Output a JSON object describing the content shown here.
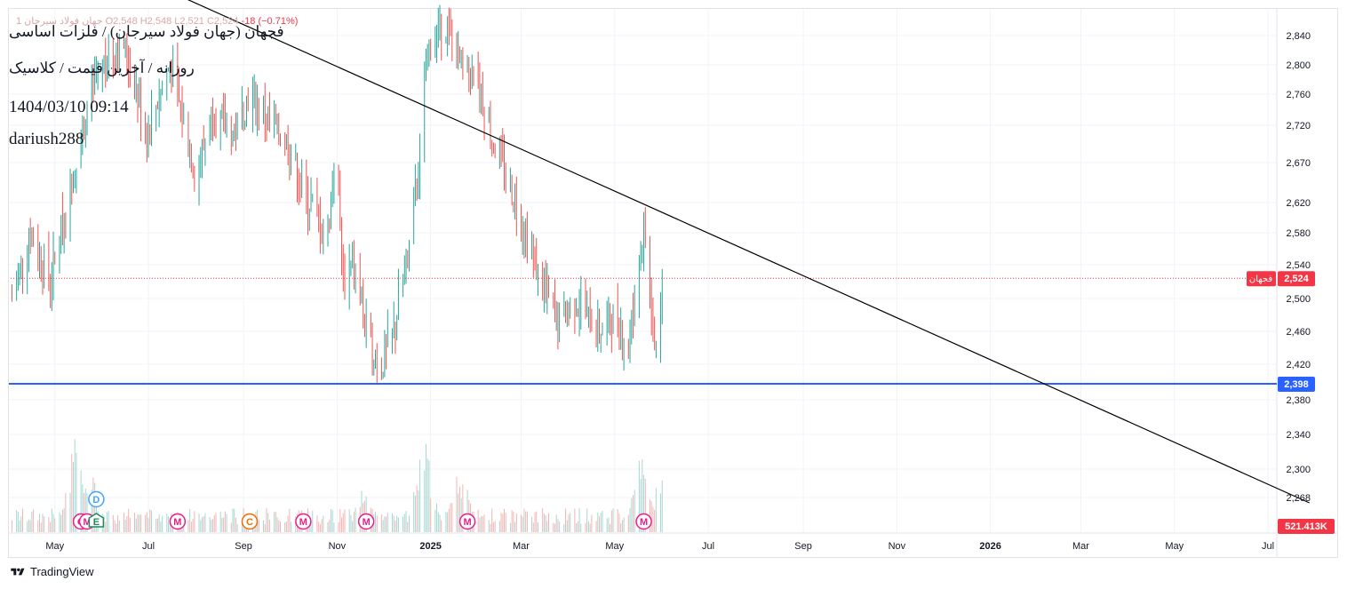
{
  "header": {
    "symbol_title": "فجهان (جهان فولاد سیرجان) / فلزات اساسی",
    "subtitle": "روزانه / آخرین قیمت / کلاسیک",
    "datetime": "1404/03/10 09:14",
    "author": "dariush288",
    "ohlc_faded": "جهان فولاد سیرجان  1  O2,548  H2,548  L2,521  C2,524",
    "change": "-18 (−0.71%)"
  },
  "branding": {
    "logo_text": "TradingView"
  },
  "price_labels": {
    "last_price": "2,524",
    "last_price_symbol": "فجهان",
    "support": "2,398",
    "volume": "521.413K"
  },
  "colors": {
    "up": "#26a69a",
    "down": "#ef5350",
    "support_line": "#2962ff",
    "trendline": "#000000",
    "last_price_badge": "#f23645"
  },
  "chart_data": {
    "type": "bar",
    "y_ticks": [
      2268,
      2300,
      2340,
      2380,
      2420,
      2460,
      2500,
      2540,
      2580,
      2620,
      2670,
      2720,
      2760,
      2800,
      2840
    ],
    "y_tick_labels": [
      "2,268",
      "2,300",
      "2,340",
      "2,380",
      "2,420",
      "2,460",
      "2,500",
      "2,540",
      "2,580",
      "2,620",
      "2,670",
      "2,720",
      "2,760",
      "2,800",
      "2,840"
    ],
    "x_ticks": [
      {
        "label": "May",
        "date": "2024-05-01",
        "bold": false
      },
      {
        "label": "Jul",
        "date": "2024-07-01",
        "bold": false
      },
      {
        "label": "Sep",
        "date": "2024-09-01",
        "bold": false
      },
      {
        "label": "Nov",
        "date": "2024-11-01",
        "bold": false
      },
      {
        "label": "2025",
        "date": "2025-01-01",
        "bold": true
      },
      {
        "label": "Mar",
        "date": "2025-03-01",
        "bold": false
      },
      {
        "label": "May",
        "date": "2025-05-01",
        "bold": false
      },
      {
        "label": "Jul",
        "date": "2025-07-01",
        "bold": false
      },
      {
        "label": "Sep",
        "date": "2025-09-01",
        "bold": false
      },
      {
        "label": "Nov",
        "date": "2025-11-01",
        "bold": false
      },
      {
        "label": "2026",
        "date": "2026-01-01",
        "bold": true
      },
      {
        "label": "Mar",
        "date": "2026-03-01",
        "bold": false
      },
      {
        "label": "May",
        "date": "2026-05-01",
        "bold": false
      },
      {
        "label": "Jul",
        "date": "2026-07-01",
        "bold": false
      }
    ],
    "last_price": 2524,
    "support_level": 2398,
    "trendline": [
      {
        "date": "2024-07-15",
        "price": 2900
      },
      {
        "date": "2026-07-28",
        "price": 2262
      }
    ],
    "price_path": [
      {
        "date": "2024-04-03",
        "price": 2500
      },
      {
        "date": "2024-04-15",
        "price": 2580
      },
      {
        "date": "2024-04-28",
        "price": 2520
      },
      {
        "date": "2024-05-12",
        "price": 2650
      },
      {
        "date": "2024-05-28",
        "price": 2790
      },
      {
        "date": "2024-06-15",
        "price": 2830
      },
      {
        "date": "2024-06-30",
        "price": 2710
      },
      {
        "date": "2024-07-15",
        "price": 2800
      },
      {
        "date": "2024-08-01",
        "price": 2650
      },
      {
        "date": "2024-08-12",
        "price": 2740
      },
      {
        "date": "2024-08-25",
        "price": 2705
      },
      {
        "date": "2024-09-05",
        "price": 2760
      },
      {
        "date": "2024-09-20",
        "price": 2720
      },
      {
        "date": "2024-10-01",
        "price": 2690
      },
      {
        "date": "2024-10-10",
        "price": 2630
      },
      {
        "date": "2024-10-18",
        "price": 2610
      },
      {
        "date": "2024-10-25",
        "price": 2560
      },
      {
        "date": "2024-10-31",
        "price": 2700
      },
      {
        "date": "2024-11-05",
        "price": 2520
      },
      {
        "date": "2024-11-12",
        "price": 2540
      },
      {
        "date": "2024-11-22",
        "price": 2440
      },
      {
        "date": "2024-11-30",
        "price": 2420
      },
      {
        "date": "2024-12-08",
        "price": 2460
      },
      {
        "date": "2024-12-18",
        "price": 2560
      },
      {
        "date": "2024-12-25",
        "price": 2680
      },
      {
        "date": "2024-12-30",
        "price": 2820
      },
      {
        "date": "2025-01-10",
        "price": 2860
      },
      {
        "date": "2025-01-20",
        "price": 2800
      },
      {
        "date": "2025-02-01",
        "price": 2780
      },
      {
        "date": "2025-02-10",
        "price": 2700
      },
      {
        "date": "2025-02-20",
        "price": 2650
      },
      {
        "date": "2025-03-01",
        "price": 2600
      },
      {
        "date": "2025-03-10",
        "price": 2540
      },
      {
        "date": "2025-03-25",
        "price": 2470
      },
      {
        "date": "2025-04-05",
        "price": 2500
      },
      {
        "date": "2025-04-20",
        "price": 2460
      },
      {
        "date": "2025-05-01",
        "price": 2480
      },
      {
        "date": "2025-05-10",
        "price": 2440
      },
      {
        "date": "2025-05-20",
        "price": 2590
      },
      {
        "date": "2025-05-28",
        "price": 2430
      },
      {
        "date": "2025-06-01",
        "price": 2524
      }
    ],
    "volume_peaks": [
      {
        "date": "2024-05-15",
        "volume": 0.85
      },
      {
        "date": "2024-05-25",
        "volume": 0.45
      },
      {
        "date": "2024-11-18",
        "volume": 0.35
      },
      {
        "date": "2024-12-28",
        "volume": 0.75
      },
      {
        "date": "2025-01-20",
        "volume": 0.55
      },
      {
        "date": "2025-05-18",
        "volume": 0.7
      },
      {
        "date": "2025-06-01",
        "volume": 0.5
      }
    ],
    "event_markers": [
      {
        "date": "2024-05-18",
        "letter": "O",
        "color": "#e91e8c"
      },
      {
        "date": "2024-05-22",
        "letter": "M",
        "color": "#e91e8c"
      },
      {
        "date": "2024-05-28",
        "letter": "D",
        "color": "#42a5f5"
      },
      {
        "date": "2024-05-28",
        "letter": "E",
        "color": "#1b8a5a"
      },
      {
        "date": "2024-07-20",
        "letter": "M",
        "color": "#e91e8c"
      },
      {
        "date": "2024-09-05",
        "letter": "C",
        "color": "#ef6c00"
      },
      {
        "date": "2024-10-10",
        "letter": "M",
        "color": "#e91e8c"
      },
      {
        "date": "2024-11-20",
        "letter": "M",
        "color": "#e91e8c"
      },
      {
        "date": "2025-01-25",
        "letter": "M",
        "color": "#e91e8c"
      },
      {
        "date": "2025-05-20",
        "letter": "M",
        "color": "#e91e8c"
      }
    ]
  }
}
